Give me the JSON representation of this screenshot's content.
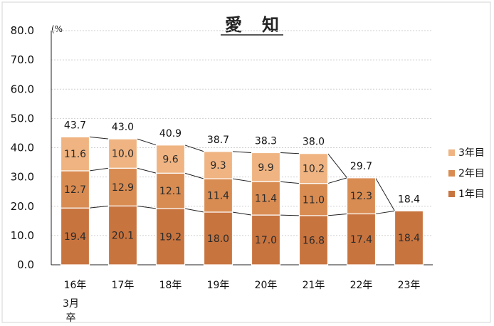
{
  "chart_data": {
    "type": "bar",
    "stacked": true,
    "title": "愛　知",
    "unit": "(%",
    "categories": [
      "16年",
      "17年",
      "18年",
      "19年",
      "20年",
      "21年",
      "22年",
      "23年"
    ],
    "category_note": {
      "index": 0,
      "lines": [
        "3月",
        "卒"
      ]
    },
    "ylim": [
      0,
      80
    ],
    "yticks": [
      "0.0",
      "10.0",
      "20.0",
      "30.0",
      "40.0",
      "50.0",
      "60.0",
      "70.0",
      "80.0"
    ],
    "series": [
      {
        "name": "1年目",
        "color": "#c8743f",
        "values": [
          19.4,
          20.1,
          19.2,
          18.0,
          17.0,
          16.8,
          17.4,
          18.4
        ]
      },
      {
        "name": "2年目",
        "color": "#d98c52",
        "values": [
          12.7,
          12.9,
          12.1,
          11.4,
          11.4,
          11.0,
          12.3,
          null
        ]
      },
      {
        "name": "3年目",
        "color": "#efb482",
        "values": [
          11.6,
          10.0,
          9.6,
          9.3,
          9.9,
          10.2,
          null,
          null
        ]
      }
    ],
    "totals": [
      43.7,
      43.0,
      40.9,
      38.7,
      38.3,
      38.0,
      29.7,
      18.4
    ],
    "legend": {
      "position": "right",
      "order": [
        "3年目",
        "2年目",
        "1年目"
      ]
    },
    "grid": true
  }
}
